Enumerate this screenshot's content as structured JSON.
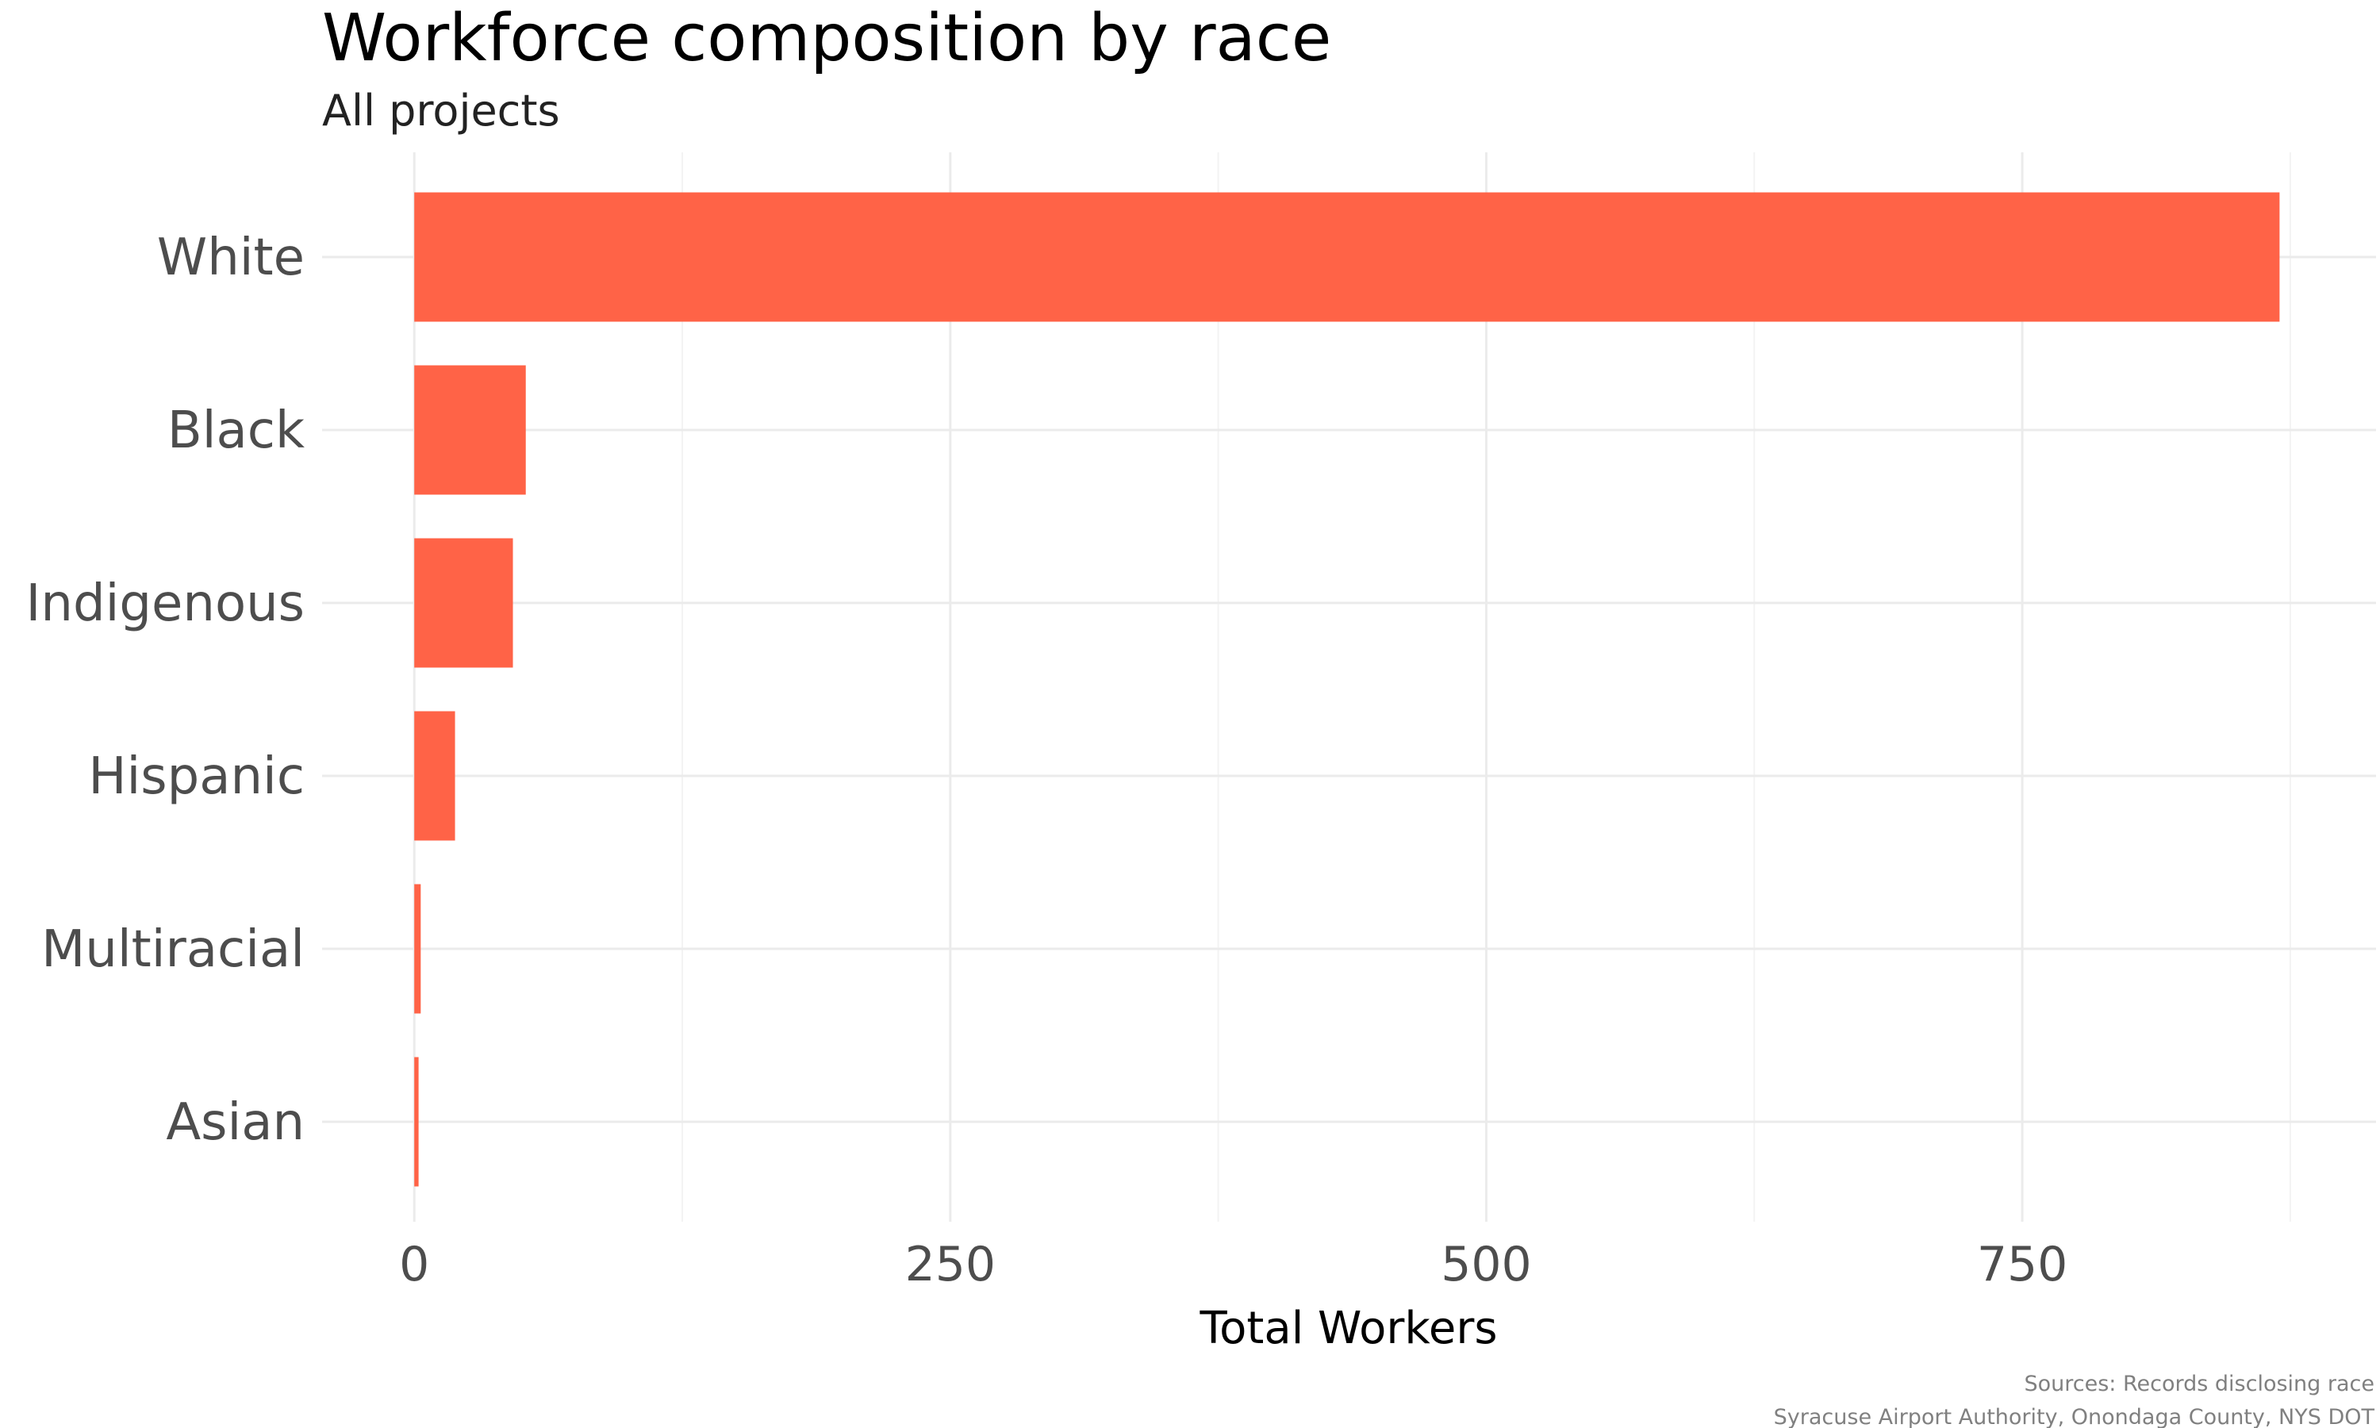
{
  "chart_data": {
    "type": "bar",
    "orientation": "horizontal",
    "title": "Workforce composition by race",
    "subtitle": "All projects",
    "categories": [
      "White",
      "Black",
      "Indigenous",
      "Hispanic",
      "Multiracial",
      "Asian"
    ],
    "values": [
      870,
      52,
      46,
      19,
      3,
      2
    ],
    "xlabel": "Total Workers",
    "ylabel": "",
    "xlim": [
      -43,
      915
    ],
    "x_ticks": [
      0,
      250,
      500,
      750
    ],
    "x_tick_labels": [
      "0",
      "250",
      "500",
      "750"
    ],
    "grid": true,
    "legend": "none",
    "caption": [
      "Sources: Records disclosing race",
      "Syracuse Airport Authority, Onondaga County, NYS DOT"
    ],
    "colors": {
      "bar": "#FF6347",
      "grid_major": "#EBEBEB",
      "grid_minor": "#F3F3F3"
    }
  }
}
